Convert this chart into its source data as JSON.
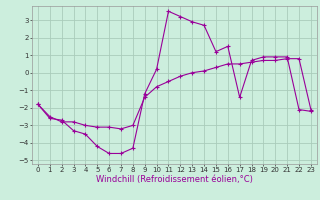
{
  "xlabel": "Windchill (Refroidissement éolien,°C)",
  "bg_color": "#cceedd",
  "grid_color": "#aaccbb",
  "line_color": "#990099",
  "xlim": [
    -0.5,
    23.5
  ],
  "ylim": [
    -5.2,
    3.8
  ],
  "xticks": [
    0,
    1,
    2,
    3,
    4,
    5,
    6,
    7,
    8,
    9,
    10,
    11,
    12,
    13,
    14,
    15,
    16,
    17,
    18,
    19,
    20,
    21,
    22,
    23
  ],
  "yticks": [
    -5,
    -4,
    -3,
    -2,
    -1,
    0,
    1,
    2,
    3
  ],
  "line1_x": [
    0,
    1,
    2,
    3,
    4,
    5,
    6,
    7,
    8,
    9,
    10,
    11,
    12,
    13,
    14,
    15,
    16,
    17,
    18,
    19,
    20,
    21,
    22,
    23
  ],
  "line1_y": [
    -1.8,
    -2.6,
    -2.7,
    -3.3,
    -3.5,
    -4.2,
    -4.6,
    -4.6,
    -4.3,
    -1.2,
    0.2,
    3.5,
    3.2,
    2.9,
    2.7,
    1.2,
    1.5,
    -1.4,
    0.7,
    0.9,
    0.9,
    0.9,
    -2.1,
    -2.2
  ],
  "line2_x": [
    0,
    1,
    2,
    3,
    4,
    5,
    6,
    7,
    8,
    9,
    10,
    11,
    12,
    13,
    14,
    15,
    16,
    17,
    18,
    19,
    20,
    21,
    22,
    23
  ],
  "line2_y": [
    -1.8,
    -2.5,
    -2.8,
    -2.8,
    -3.0,
    -3.1,
    -3.1,
    -3.2,
    -3.0,
    -1.4,
    -0.8,
    -0.5,
    -0.2,
    0.0,
    0.1,
    0.3,
    0.5,
    0.5,
    0.6,
    0.7,
    0.7,
    0.8,
    0.8,
    -2.1
  ],
  "tick_fontsize": 5,
  "xlabel_fontsize": 6
}
